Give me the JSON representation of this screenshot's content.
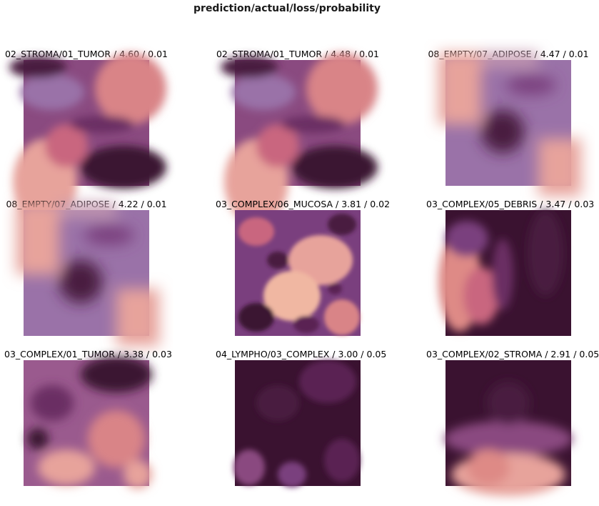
{
  "figure": {
    "title": "prediction/actual/loss/probability"
  },
  "panels": [
    {
      "label": "02_STROMA/01_TUMOR / 4.60 / 0.01"
    },
    {
      "label": "02_STROMA/01_TUMOR / 4.48 / 0.01"
    },
    {
      "label": "08_EMPTY/07_ADIPOSE / 4.47 / 0.01"
    },
    {
      "label": "08_EMPTY/07_ADIPOSE / 4.22 / 0.01"
    },
    {
      "label": "03_COMPLEX/06_MUCOSA / 3.81 / 0.02"
    },
    {
      "label": "03_COMPLEX/05_DEBRIS / 3.47 / 0.03"
    },
    {
      "label": "03_COMPLEX/01_TUMOR / 3.38 / 0.03"
    },
    {
      "label": "04_LYMPHO/03_COMPLEX / 3.00 / 0.05"
    },
    {
      "label": "03_COMPLEX/02_STROMA / 2.91 / 0.05"
    }
  ],
  "colors": {
    "dark": "#3a1230",
    "purple": "#7a3f7e",
    "lavender": "#9a72a8",
    "salmon": "#de8a86",
    "pink": "#e7a39b"
  }
}
